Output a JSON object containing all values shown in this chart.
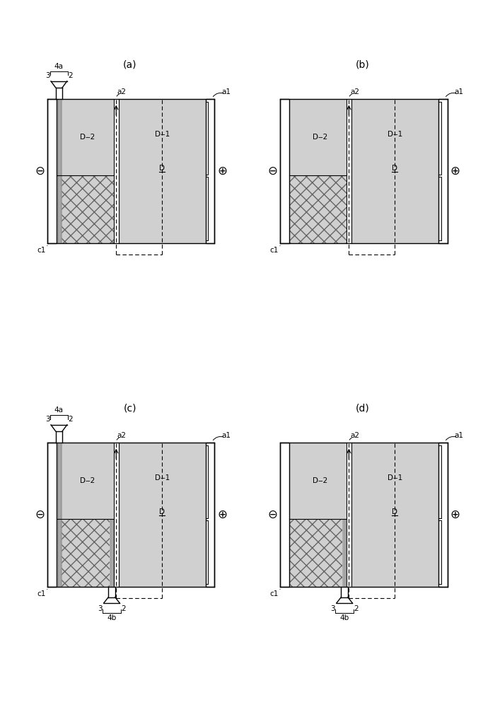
{
  "bg": "#ffffff",
  "lc": "#000000",
  "dot_fill": "#d0d0d0",
  "cross_fill": "#d0d0d0",
  "panel_titles": [
    "(a)",
    "(b)",
    "(c)",
    "(d)"
  ],
  "panel_configs": [
    {
      "top_port": true,
      "bot_port": false,
      "left_stripe": true,
      "right_stripe": false
    },
    {
      "top_port": false,
      "bot_port": false,
      "left_stripe": false,
      "right_stripe": false
    },
    {
      "top_port": true,
      "bot_port": true,
      "left_stripe": true,
      "right_stripe": true
    },
    {
      "top_port": false,
      "bot_port": true,
      "left_stripe": false,
      "right_stripe": true
    }
  ]
}
